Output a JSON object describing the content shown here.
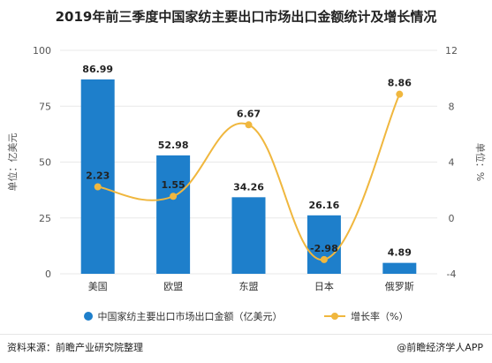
{
  "title": "2019年前三季度中国家纺主要出口市场出口金额统计及增长情况",
  "colors": {
    "bar": "#1e7fcb",
    "line": "#f0b73e",
    "grid": "#e8e8e8"
  },
  "chart_data": {
    "type": "bar",
    "categories": [
      "美国",
      "欧盟",
      "东盟",
      "日本",
      "俄罗斯"
    ],
    "series": [
      {
        "name": "中国家纺主要出口市场出口金额（亿美元）",
        "type": "bar",
        "axis": "left",
        "values": [
          86.99,
          52.98,
          34.26,
          26.16,
          4.89
        ]
      },
      {
        "name": "增长率（%）",
        "type": "line",
        "axis": "right",
        "values": [
          2.23,
          1.55,
          6.67,
          -2.98,
          8.86
        ]
      }
    ],
    "y_left": {
      "label": "单位：亿美元",
      "ylim": [
        0,
        100
      ],
      "ticks": [
        0,
        25,
        50,
        75,
        100
      ]
    },
    "y_right": {
      "label": "单位：%",
      "ylim": [
        -4,
        12
      ],
      "ticks": [
        -4,
        0,
        4,
        8,
        12
      ]
    },
    "legend_position": "bottom",
    "grid": true
  },
  "footer": {
    "source": "资料来源：前瞻产业研究院整理",
    "brand": "@前瞻经济学人APP"
  }
}
